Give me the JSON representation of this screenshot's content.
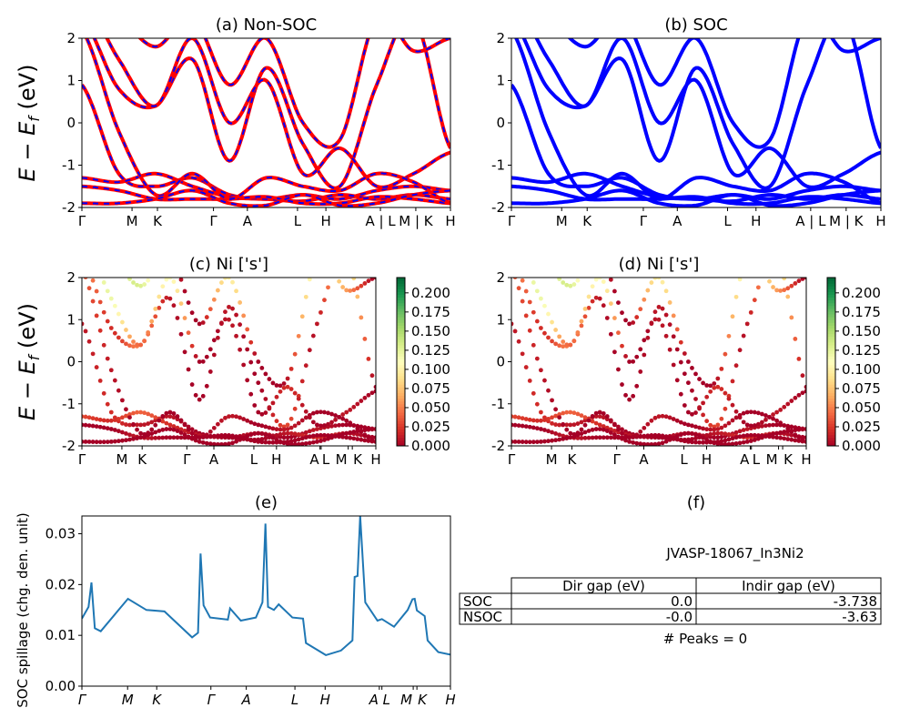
{
  "chart_data": [
    {
      "id": "a",
      "type": "line",
      "title": "(a) Non-SOC",
      "ylim": [
        -2,
        2
      ],
      "yticks": [
        -2,
        -1,
        0,
        1,
        2
      ],
      "ylabel_main": "E − E",
      "ylabel_sub": "f",
      "ylabel_unit": " (eV)",
      "xticks": [
        0,
        0.136,
        0.205,
        0.357,
        0.449,
        0.585,
        0.662,
        0.81,
        0.906,
        1
      ],
      "xticklabels": [
        "Γ",
        "M",
        "K",
        "Γ",
        "A",
        "L",
        "H",
        "A | L",
        "M | K",
        "H"
      ],
      "colors": {
        "solid": "#ff0000",
        "dashed": "#0000ff"
      }
    },
    {
      "id": "b",
      "type": "line",
      "title": "(b) SOC",
      "ylim": [
        -2,
        2
      ],
      "yticks": [
        -2,
        -1,
        0,
        1,
        2
      ],
      "xticks": [
        0,
        0.136,
        0.205,
        0.357,
        0.449,
        0.585,
        0.662,
        0.81,
        0.906,
        1
      ],
      "xticklabels": [
        "Γ",
        "M",
        "K",
        "Γ",
        "A",
        "L",
        "H",
        "A | L",
        "M | K",
        "H"
      ],
      "colors": {
        "solid": "#0000ff"
      }
    },
    {
      "id": "c",
      "type": "scatter",
      "title": "(c)  Ni ['s']",
      "ylim": [
        -2,
        2
      ],
      "yticks": [
        -2,
        -1,
        0,
        1,
        2
      ],
      "ylabel_main": "E − E",
      "ylabel_sub": "f",
      "ylabel_unit": " (eV)",
      "xticks": [
        0,
        0.136,
        0.205,
        0.357,
        0.449,
        0.585,
        0.662,
        0.81,
        0.814,
        0.906,
        0.92,
        1
      ],
      "xticklabels": [
        "Γ",
        "M",
        "K",
        "Γ",
        "A",
        "L",
        "H",
        "A",
        "L",
        "M",
        "K",
        "H"
      ],
      "colorbar": {
        "colormap": "RdYlGn",
        "range": [
          0,
          0.22
        ],
        "ticks": [
          "0.000",
          "0.025",
          "0.050",
          "0.075",
          "0.100",
          "0.125",
          "0.150",
          "0.175",
          "0.200"
        ]
      }
    },
    {
      "id": "d",
      "type": "scatter",
      "title": "(d) Ni ['s']",
      "ylim": [
        -2,
        2
      ],
      "yticks": [
        -2,
        -1,
        0,
        1,
        2
      ],
      "xticks": [
        0,
        0.136,
        0.205,
        0.357,
        0.449,
        0.585,
        0.662,
        0.81,
        0.814,
        0.906,
        0.92,
        1
      ],
      "xticklabels": [
        "Γ",
        "M",
        "K",
        "Γ",
        "A",
        "L",
        "H",
        "A",
        "L",
        "M",
        "K",
        "H"
      ],
      "colorbar": {
        "colormap": "RdYlGn",
        "range": [
          0,
          0.22
        ],
        "ticks": [
          "0.000",
          "0.025",
          "0.050",
          "0.075",
          "0.100",
          "0.125",
          "0.150",
          "0.175",
          "0.200"
        ]
      }
    },
    {
      "id": "e",
      "type": "line",
      "title": "(e)",
      "ylabel": "SOC spillage (chg. den. unit)",
      "ylim": [
        0,
        0.0335
      ],
      "yticks": [
        "0.00",
        "0.01",
        "0.02",
        "0.03"
      ],
      "xticks": [
        0,
        0.124,
        0.203,
        0.35,
        0.446,
        0.578,
        0.66,
        0.807,
        0.814,
        0.899,
        0.909,
        1
      ],
      "xticklabels": [
        "Γ",
        "M",
        "K",
        "Γ",
        "A",
        "L",
        "H",
        "A",
        "L",
        "M",
        "K",
        "H"
      ],
      "color": "#1f77b4",
      "x": [
        0,
        0.018,
        0.026,
        0.035,
        0.051,
        0.125,
        0.175,
        0.224,
        0.299,
        0.315,
        0.322,
        0.33,
        0.348,
        0.396,
        0.402,
        0.431,
        0.472,
        0.49,
        0.498,
        0.505,
        0.521,
        0.534,
        0.571,
        0.6,
        0.608,
        0.662,
        0.703,
        0.734,
        0.74,
        0.748,
        0.755,
        0.769,
        0.802,
        0.814,
        0.847,
        0.884,
        0.897,
        0.903,
        0.909,
        0.93,
        0.938,
        0.967,
        1
      ],
      "y": [
        0.0133,
        0.0156,
        0.0204,
        0.0114,
        0.0108,
        0.0172,
        0.015,
        0.0147,
        0.0096,
        0.0105,
        0.0261,
        0.0159,
        0.0135,
        0.0131,
        0.0153,
        0.0129,
        0.0135,
        0.0165,
        0.032,
        0.0156,
        0.015,
        0.0161,
        0.0135,
        0.0133,
        0.0085,
        0.0061,
        0.007,
        0.009,
        0.0215,
        0.0217,
        0.0335,
        0.0165,
        0.0129,
        0.0132,
        0.0117,
        0.015,
        0.0171,
        0.0172,
        0.0149,
        0.0138,
        0.009,
        0.0067,
        0.0062
      ]
    },
    {
      "id": "f",
      "type": "table",
      "title": "(f)",
      "subtitle": "JVASP-18067_In3Ni2",
      "columns": [
        "Dir gap (eV)",
        "Indir gap (eV)"
      ],
      "rows": [
        {
          "label": "SOC",
          "values": [
            "0.0",
            "-3.738"
          ]
        },
        {
          "label": "NSOC",
          "values": [
            "-0.0",
            "-3.63"
          ]
        }
      ],
      "footer": "# Peaks = 0"
    }
  ],
  "bands": {
    "k": [
      0,
      0.1,
      0.2,
      0.3,
      0.4,
      0.5,
      0.6,
      0.7,
      0.8,
      0.9,
      1.0
    ],
    "energies": [
      [
        0.9,
        -1.2,
        -1.5,
        -1.3,
        -1.7,
        -1.8,
        -1.7,
        -1.8,
        -1.6,
        -1.5,
        -1.6
      ],
      [
        -1.3,
        -1.4,
        -1.2,
        -1.5,
        -1.75,
        -1.8,
        -1.85,
        -1.7,
        -1.8,
        -1.7,
        -1.8
      ],
      [
        -1.5,
        -1.6,
        -1.8,
        -1.8,
        -1.8,
        -1.75,
        -1.9,
        -1.9,
        -1.75,
        -1.8,
        -1.9
      ],
      [
        2.5,
        0.8,
        0.4,
        1.5,
        -0.9,
        1.3,
        -0.5,
        -1.5,
        0.9,
        2.5,
        -0.6
      ],
      [
        3,
        1.5,
        0.4,
        2.0,
        0.0,
        1.0,
        -1.2,
        -0.6,
        -1.5,
        -1.2,
        -0.7
      ],
      [
        2.2,
        -0.2,
        -1.7,
        -1.2,
        -1.8,
        -1.3,
        -1.5,
        -1.6,
        -1.2,
        -1.4,
        -1.9
      ],
      [
        3,
        2.5,
        1.8,
        2.5,
        0.9,
        2.0,
        0.0,
        -0.4,
        2.5,
        1.7,
        2.0
      ],
      [
        -1.9,
        -1.9,
        -1.8,
        -1.6,
        -1.9,
        -1.95,
        -1.7,
        -1.95,
        -1.9,
        -1.7,
        -1.6
      ]
    ],
    "weights": [
      [
        0.01,
        0.02,
        0.01,
        0.01,
        0.0,
        0.0,
        0.01,
        0.0,
        0.01,
        0.0,
        0.0
      ],
      [
        0.03,
        0.02,
        0.04,
        0.02,
        0.01,
        0.0,
        0.0,
        0.01,
        0.02,
        0.01,
        0.0
      ],
      [
        0.0,
        0.0,
        0.01,
        0.0,
        0.0,
        0.0,
        0.0,
        0.0,
        0.0,
        0.0,
        0.0
      ],
      [
        0.06,
        0.02,
        0.05,
        0.01,
        0.0,
        0.01,
        0.0,
        0.03,
        0.01,
        0.1,
        0.0
      ],
      [
        0.1,
        0.12,
        0.04,
        0.11,
        0.0,
        0.01,
        0.0,
        0.02,
        0.0,
        0.01,
        0.0
      ],
      [
        0.04,
        0.01,
        0.0,
        0.0,
        0.0,
        0.01,
        0.0,
        0.01,
        0.0,
        0.0,
        0.0
      ],
      [
        0.02,
        0.1,
        0.13,
        0.03,
        0.0,
        0.1,
        0.0,
        0.01,
        0.12,
        0.06,
        0.0
      ],
      [
        0.0,
        0.0,
        0.0,
        0.0,
        0.0,
        0.0,
        0.0,
        0.0,
        0.0,
        0.0,
        0.0
      ]
    ]
  }
}
